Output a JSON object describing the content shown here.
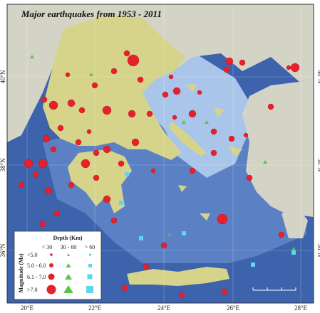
{
  "title": "Major earthquakes from 1953 - 2011",
  "longitude_labels": [
    "20°E",
    "22°E",
    "24°E",
    "26°E",
    "28°E"
  ],
  "latitude_labels": [
    "40°N",
    "38°N",
    "36°N"
  ],
  "legend": {
    "depth_title": "Depth (Km)",
    "depth_classes": [
      "< 30",
      "30 - 60",
      "> 60"
    ],
    "magnitude_title": "Magnitude (Ms)",
    "magnitude_classes": [
      "<5.0",
      "5.0 - 6.0",
      "6.1 - 7.0",
      ">7.0"
    ]
  }
}
